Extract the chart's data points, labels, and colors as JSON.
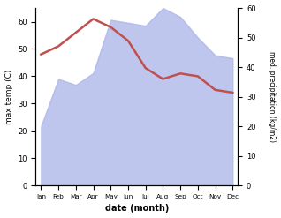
{
  "months": [
    "Jan",
    "Feb",
    "Mar",
    "Apr",
    "May",
    "Jun",
    "Jul",
    "Aug",
    "Sep",
    "Oct",
    "Nov",
    "Dec"
  ],
  "max_temp": [
    48,
    51,
    56,
    61,
    58,
    53,
    43,
    39,
    41,
    40,
    35,
    34
  ],
  "precipitation": [
    20,
    36,
    34,
    38,
    56,
    55,
    54,
    60,
    57,
    50,
    44,
    43
  ],
  "temp_color": "#c0504d",
  "fill_color": "#aab4e8",
  "fill_alpha": 0.75,
  "ylabel_left": "max temp (C)",
  "ylabel_right": "med. precipitation (kg/m2)",
  "xlabel": "date (month)",
  "ylim_left": [
    0,
    65
  ],
  "ylim_right": [
    0,
    60
  ],
  "yticks_left": [
    0,
    10,
    20,
    30,
    40,
    50,
    60
  ],
  "yticks_right": [
    0,
    10,
    20,
    30,
    40,
    50,
    60
  ]
}
